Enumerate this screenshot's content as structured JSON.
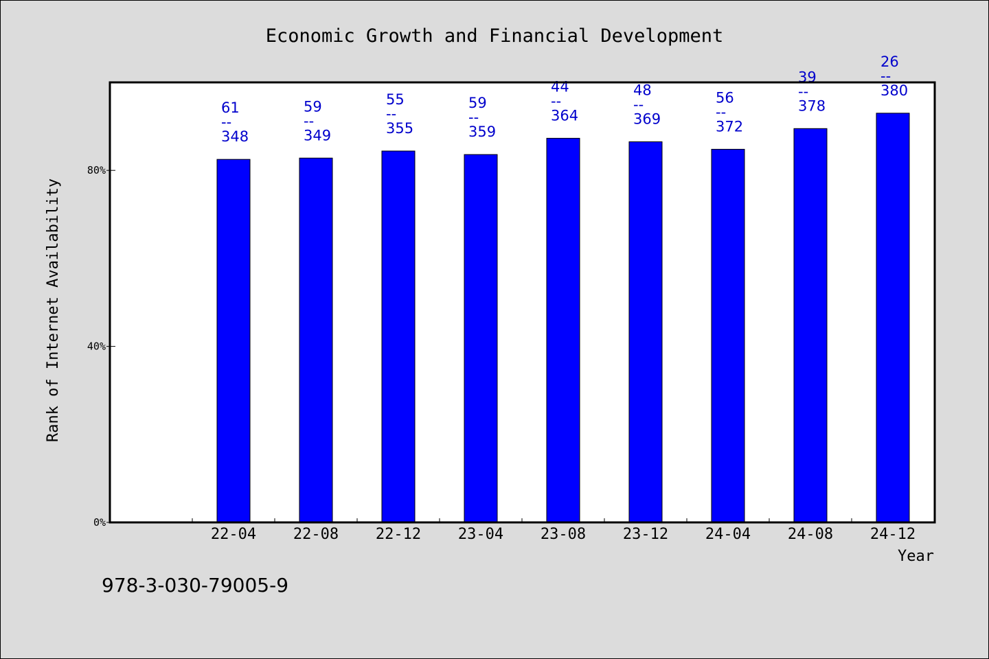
{
  "chart_data": {
    "type": "bar",
    "title": "Economic Growth and Financial Development",
    "xlabel": "Year",
    "ylabel": "Rank of Internet Availability",
    "categories": [
      "22-04",
      "22-08",
      "22-12",
      "23-04",
      "23-08",
      "23-12",
      "24-04",
      "24-08",
      "24-12"
    ],
    "values": [
      82.5,
      82.8,
      84.4,
      83.6,
      87.3,
      86.5,
      84.8,
      89.5,
      93.0
    ],
    "bar_labels": [
      {
        "top": "61",
        "sep": "--",
        "bottom": "348"
      },
      {
        "top": "59",
        "sep": "--",
        "bottom": "349"
      },
      {
        "top": "55",
        "sep": "--",
        "bottom": "355"
      },
      {
        "top": "59",
        "sep": "--",
        "bottom": "359"
      },
      {
        "top": "44",
        "sep": "--",
        "bottom": "364"
      },
      {
        "top": "48",
        "sep": "--",
        "bottom": "369"
      },
      {
        "top": "56",
        "sep": "--",
        "bottom": "372"
      },
      {
        "top": "39",
        "sep": "--",
        "bottom": "378"
      },
      {
        "top": "26",
        "sep": "--",
        "bottom": "380"
      }
    ],
    "y_ticks": [
      {
        "value": 0,
        "label": "0%"
      },
      {
        "value": 40,
        "label": "40%"
      },
      {
        "value": 80,
        "label": "80%"
      }
    ],
    "ylim": [
      0,
      100
    ],
    "grid": false,
    "bar_color": "#0000ff",
    "label_color": "#0000cc"
  },
  "footer": {
    "isbn": "978-3-030-79005-9"
  }
}
